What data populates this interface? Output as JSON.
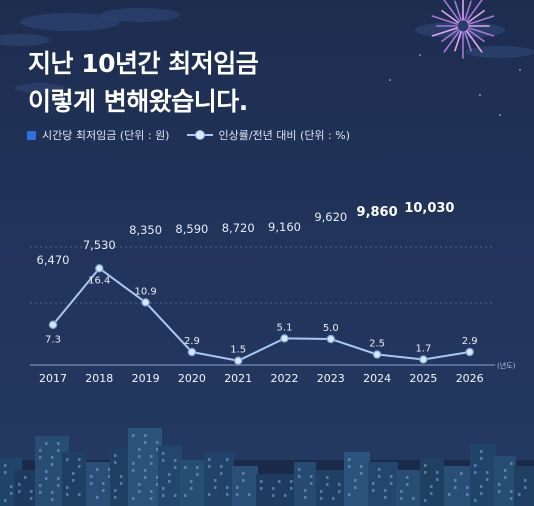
{
  "title": {
    "line1": "지난 10년간 최저임금",
    "line2": "이렇게 변해왔습니다."
  },
  "legend": {
    "wage": "시간당 최저임금 (단위 : 원)",
    "rate": "인상률/전년 대비 (단위 : %)"
  },
  "chart_data": {
    "type": "line",
    "x_unit": "(년도)",
    "categories": [
      "2017",
      "2018",
      "2019",
      "2020",
      "2021",
      "2022",
      "2023",
      "2024",
      "2025",
      "2026"
    ],
    "wage_labels": [
      "6,470",
      "7,530",
      "8,350",
      "8,590",
      "8,720",
      "9,160",
      "9,620",
      "9,860",
      "10,030",
      ""
    ],
    "series": [
      {
        "values": [
          7.3,
          16.4,
          10.9,
          2.9,
          1.5,
          5.1,
          5.0,
          2.5,
          1.7,
          2.9
        ],
        "labels": [
          "7.3",
          "16.4",
          "10.9",
          "2.9",
          "1.5",
          "5.1",
          "5.0",
          "2.5",
          "1.7",
          "2.9"
        ]
      }
    ],
    "colors": {
      "line": "#a9c7ef",
      "marker": "#dbe9ff",
      "wage_bold": "#ffffff",
      "wage_text": "#e6ecf6"
    }
  }
}
